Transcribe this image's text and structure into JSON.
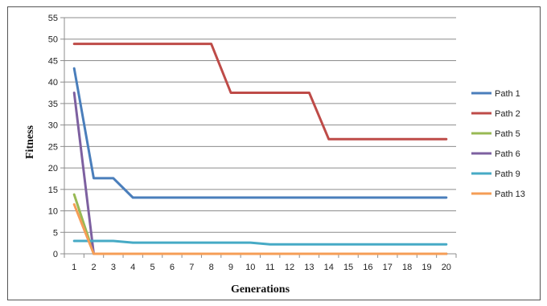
{
  "chart_data": {
    "type": "line",
    "title": "",
    "xlabel": "Generations",
    "ylabel": "Fitness",
    "ylim": [
      0,
      55
    ],
    "yticks": [
      0,
      5,
      10,
      15,
      20,
      25,
      30,
      35,
      40,
      45,
      50,
      55
    ],
    "x": [
      1,
      2,
      3,
      4,
      5,
      6,
      7,
      8,
      9,
      10,
      11,
      12,
      13,
      14,
      15,
      16,
      17,
      18,
      19,
      20
    ],
    "grid": "horizontal",
    "legend": "right",
    "series": [
      {
        "name": "Path 1",
        "color": "#4a7ebb",
        "values": [
          43.2,
          17.6,
          17.6,
          13.1,
          13.1,
          13.1,
          13.1,
          13.1,
          13.1,
          13.1,
          13.1,
          13.1,
          13.1,
          13.1,
          13.1,
          13.1,
          13.1,
          13.1,
          13.1,
          13.1
        ]
      },
      {
        "name": "Path 2",
        "color": "#be4b48",
        "values": [
          48.9,
          48.9,
          48.9,
          48.9,
          48.9,
          48.9,
          48.9,
          48.9,
          37.5,
          37.5,
          37.5,
          37.5,
          37.5,
          26.7,
          26.7,
          26.7,
          26.7,
          26.7,
          26.7,
          26.7
        ]
      },
      {
        "name": "Path 5",
        "color": "#98b954",
        "values": [
          13.8,
          0,
          0,
          0,
          0,
          0,
          0,
          0,
          0,
          0,
          0,
          0,
          0,
          0,
          0,
          0,
          0,
          0,
          0,
          0
        ]
      },
      {
        "name": "Path 6",
        "color": "#7d60a0",
        "values": [
          37.5,
          0,
          0,
          0,
          0,
          0,
          0,
          0,
          0,
          0,
          0,
          0,
          0,
          0,
          0,
          0,
          0,
          0,
          0,
          0
        ]
      },
      {
        "name": "Path 9",
        "color": "#46aac5",
        "values": [
          3,
          3,
          3,
          2.6,
          2.6,
          2.6,
          2.6,
          2.6,
          2.6,
          2.6,
          2.2,
          2.2,
          2.2,
          2.2,
          2.2,
          2.2,
          2.2,
          2.2,
          2.2,
          2.2
        ]
      },
      {
        "name": "Path 13",
        "color": "#f59d56",
        "values": [
          11.5,
          0,
          0,
          0,
          0,
          0,
          0,
          0,
          0,
          0,
          0,
          0,
          0,
          0,
          0,
          0,
          0,
          0,
          0,
          0
        ]
      }
    ]
  }
}
